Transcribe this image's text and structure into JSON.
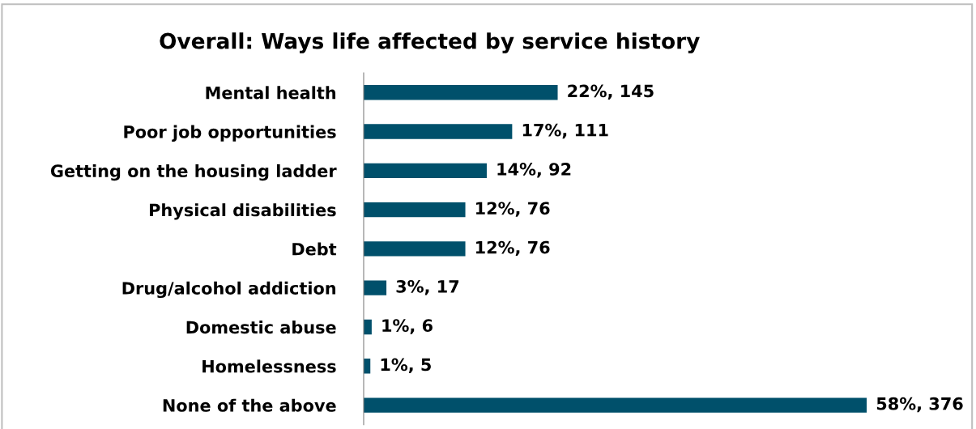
{
  "chart_data": {
    "type": "bar",
    "orientation": "horizontal",
    "title": "Overall: Ways life affected by service history",
    "categories": [
      "Mental health",
      "Poor job opportunities",
      "Getting on the housing ladder",
      "Physical disabilities",
      "Debt",
      "Drug/alcohol addiction",
      "Domestic abuse",
      "Homelessness",
      "None of the above"
    ],
    "values": [
      145,
      111,
      92,
      76,
      76,
      17,
      6,
      5,
      376
    ],
    "value_labels": [
      "22%, 145",
      "17%, 111",
      "14%, 92",
      "12%, 76",
      "12%, 76",
      "3%, 17",
      "1%, 6",
      "1%, 5",
      "58%, 376"
    ],
    "color": "#00506b",
    "grid": false,
    "legend": false
  }
}
